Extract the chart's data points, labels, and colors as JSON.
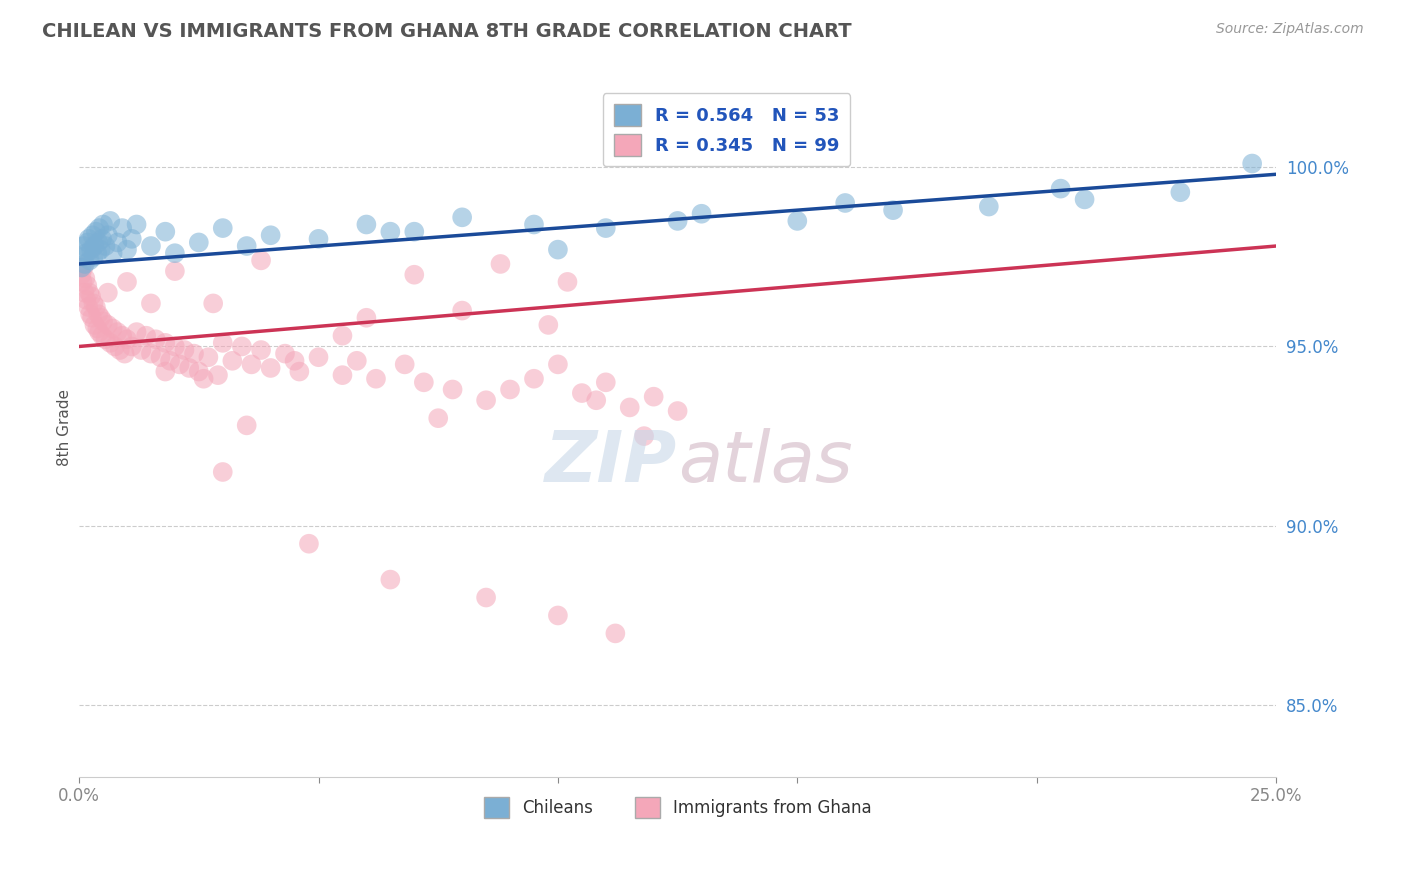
{
  "title": "CHILEAN VS IMMIGRANTS FROM GHANA 8TH GRADE CORRELATION CHART",
  "source": "Source: ZipAtlas.com",
  "xlabel_chileans": "Chileans",
  "xlabel_ghana": "Immigrants from Ghana",
  "ylabel": "8th Grade",
  "xlim": [
    0.0,
    25.0
  ],
  "ylim": [
    83.0,
    102.5
  ],
  "xticks": [
    0.0,
    5.0,
    10.0,
    15.0,
    20.0,
    25.0
  ],
  "xtick_labels": [
    "0.0%",
    "",
    "",
    "",
    "",
    "25.0%"
  ],
  "yticks": [
    85.0,
    90.0,
    95.0,
    100.0
  ],
  "ytick_labels": [
    "85.0%",
    "90.0%",
    "95.0%",
    "100.0%"
  ],
  "R_blue": 0.564,
  "N_blue": 53,
  "R_pink": 0.345,
  "N_pink": 99,
  "color_blue": "#7BAFD4",
  "color_pink": "#F4A7B9",
  "line_blue": "#1A4A99",
  "line_pink": "#CC3355",
  "background_color": "#ffffff",
  "grid_color": "#cccccc",
  "blue_x": [
    0.05,
    0.08,
    0.1,
    0.12,
    0.15,
    0.18,
    0.2,
    0.22,
    0.25,
    0.28,
    0.3,
    0.32,
    0.35,
    0.38,
    0.4,
    0.42,
    0.45,
    0.48,
    0.5,
    0.55,
    0.6,
    0.65,
    0.7,
    0.8,
    0.9,
    1.0,
    1.1,
    1.2,
    1.5,
    1.8,
    2.0,
    2.5,
    3.0,
    3.5,
    4.0,
    5.0,
    6.0,
    7.0,
    8.0,
    9.5,
    11.0,
    13.0,
    15.0,
    17.0,
    19.0,
    21.0,
    23.0,
    24.5,
    6.5,
    10.0,
    12.5,
    16.0,
    20.5
  ],
  "blue_y": [
    97.2,
    97.5,
    97.8,
    97.3,
    97.6,
    97.9,
    98.0,
    97.4,
    97.7,
    98.1,
    97.5,
    97.8,
    98.2,
    97.6,
    97.9,
    98.3,
    97.7,
    98.0,
    98.4,
    97.8,
    98.1,
    98.5,
    97.6,
    97.9,
    98.3,
    97.7,
    98.0,
    98.4,
    97.8,
    98.2,
    97.6,
    97.9,
    98.3,
    97.8,
    98.1,
    98.0,
    98.4,
    98.2,
    98.6,
    98.4,
    98.3,
    98.7,
    98.5,
    98.8,
    98.9,
    99.1,
    99.3,
    100.1,
    98.2,
    97.7,
    98.5,
    99.0,
    99.4
  ],
  "pink_x": [
    0.05,
    0.07,
    0.09,
    0.11,
    0.13,
    0.15,
    0.17,
    0.19,
    0.21,
    0.23,
    0.25,
    0.27,
    0.3,
    0.32,
    0.35,
    0.38,
    0.4,
    0.42,
    0.45,
    0.48,
    0.5,
    0.55,
    0.6,
    0.65,
    0.7,
    0.75,
    0.8,
    0.85,
    0.9,
    0.95,
    1.0,
    1.1,
    1.2,
    1.3,
    1.4,
    1.5,
    1.6,
    1.7,
    1.8,
    1.9,
    2.0,
    2.1,
    2.2,
    2.3,
    2.4,
    2.5,
    2.7,
    2.9,
    3.0,
    3.2,
    3.4,
    3.6,
    3.8,
    4.0,
    4.3,
    4.6,
    5.0,
    5.5,
    5.8,
    6.2,
    6.8,
    7.2,
    7.8,
    8.5,
    9.0,
    9.5,
    10.0,
    10.5,
    11.0,
    11.5,
    12.0,
    12.5,
    1.8,
    2.6,
    4.5,
    6.0,
    7.5,
    8.0,
    9.8,
    10.8,
    1.5,
    3.5,
    5.5,
    7.0,
    8.8,
    10.2,
    11.8,
    3.0,
    4.8,
    6.5,
    8.5,
    10.0,
    11.2,
    0.6,
    1.0,
    2.0,
    2.8,
    3.8
  ],
  "pink_y": [
    97.0,
    96.8,
    97.2,
    96.5,
    96.9,
    96.3,
    96.7,
    96.1,
    96.5,
    95.9,
    96.4,
    95.8,
    96.2,
    95.6,
    96.1,
    95.5,
    95.9,
    95.4,
    95.8,
    95.3,
    95.7,
    95.2,
    95.6,
    95.1,
    95.5,
    95.0,
    95.4,
    94.9,
    95.3,
    94.8,
    95.2,
    95.0,
    95.4,
    94.9,
    95.3,
    94.8,
    95.2,
    94.7,
    95.1,
    94.6,
    95.0,
    94.5,
    94.9,
    94.4,
    94.8,
    94.3,
    94.7,
    94.2,
    95.1,
    94.6,
    95.0,
    94.5,
    94.9,
    94.4,
    94.8,
    94.3,
    94.7,
    94.2,
    94.6,
    94.1,
    94.5,
    94.0,
    93.8,
    93.5,
    93.8,
    94.1,
    94.5,
    93.7,
    94.0,
    93.3,
    93.6,
    93.2,
    94.3,
    94.1,
    94.6,
    95.8,
    93.0,
    96.0,
    95.6,
    93.5,
    96.2,
    92.8,
    95.3,
    97.0,
    97.3,
    96.8,
    92.5,
    91.5,
    89.5,
    88.5,
    88.0,
    87.5,
    87.0,
    96.5,
    96.8,
    97.1,
    96.2,
    97.4
  ]
}
